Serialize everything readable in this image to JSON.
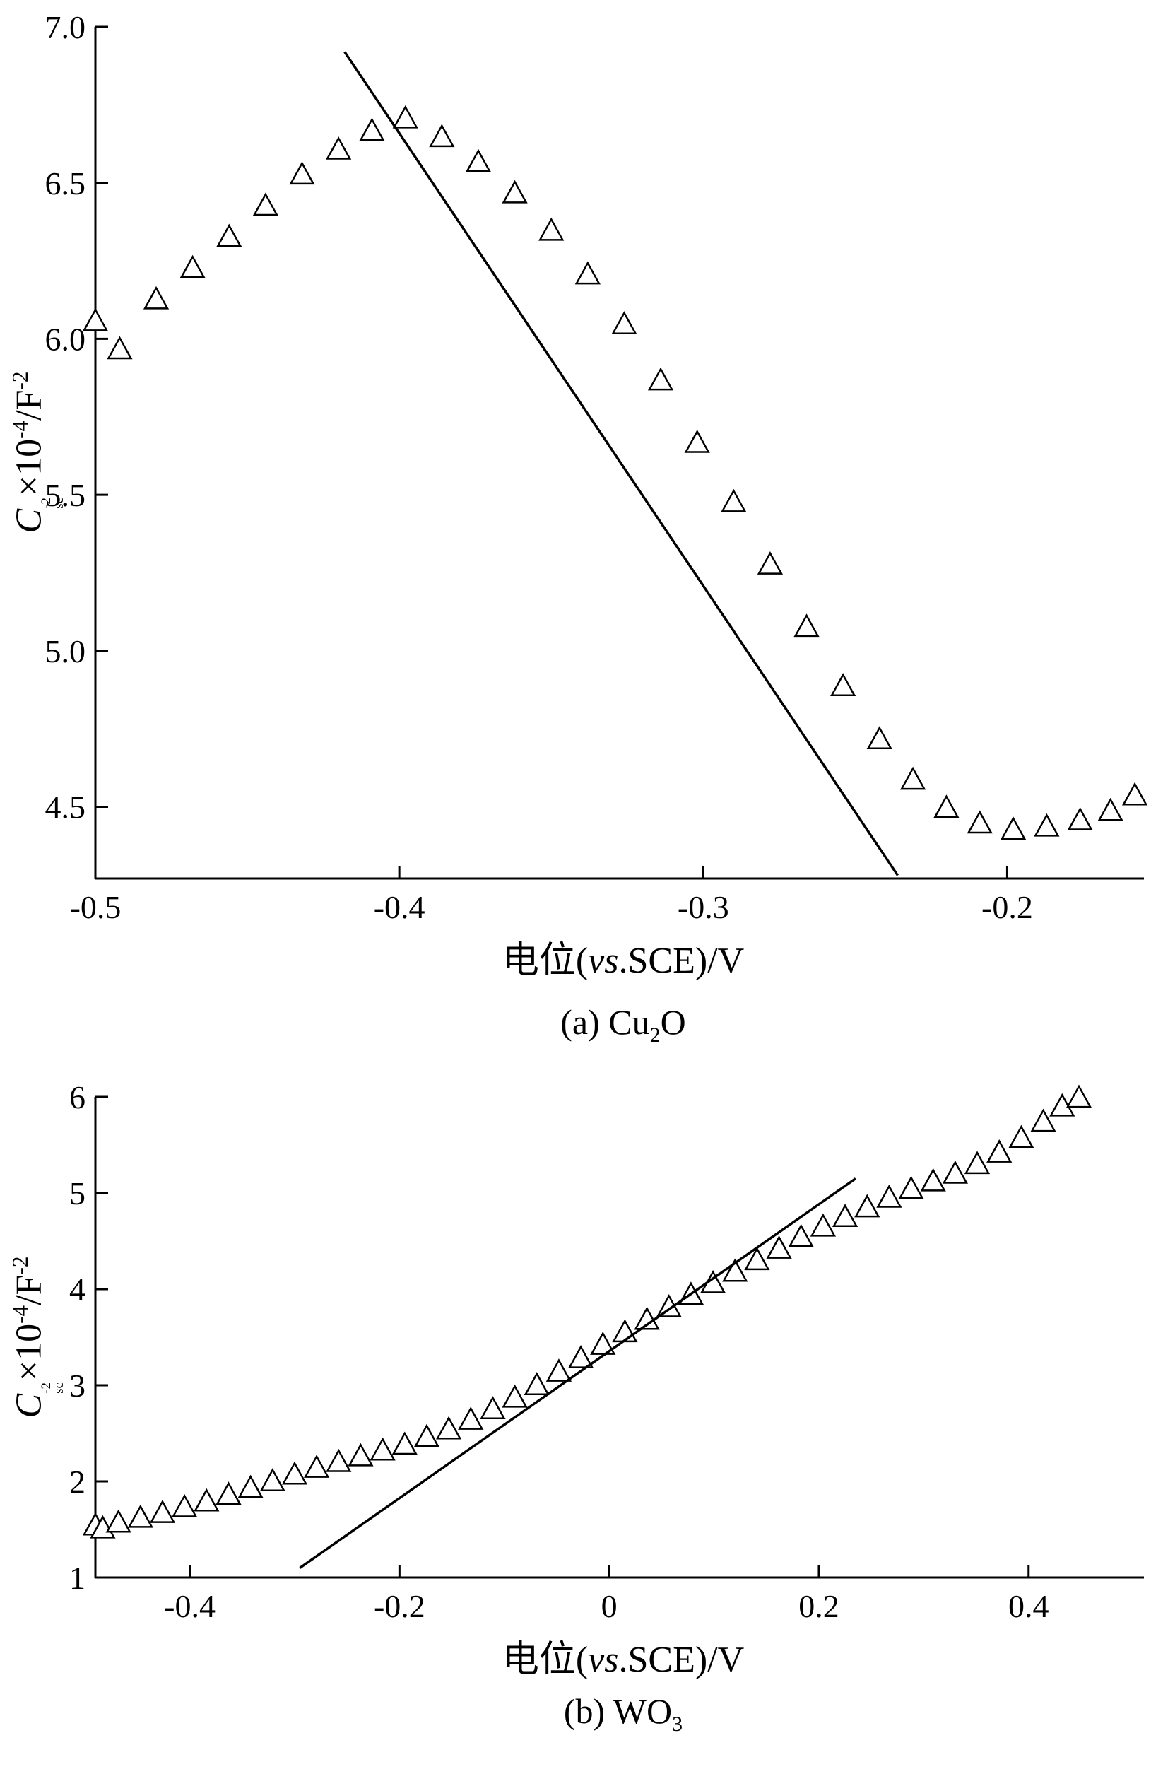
{
  "page": {
    "background": "#ffffff",
    "text_color": "#000000",
    "accent": "#000000"
  },
  "figures": [
    {
      "caption": {
        "prefix": "(a) Cu",
        "sub": "2",
        "suffix": "O"
      },
      "xlabel": {
        "prefix": "电位(",
        "italic": "vs",
        "suffix": ".SCE)/V"
      },
      "ylabel": {
        "sym": "C",
        "sup1": "-2",
        "sub1": "sc",
        "mid": "×10",
        "sup2": "-4",
        "unit": "/F",
        "sup3": "-2"
      }
    },
    {
      "caption": {
        "prefix": "(b) WO",
        "sub": "3",
        "suffix": ""
      },
      "xlabel": {
        "prefix": "电位(",
        "italic": "vs",
        "suffix": ".SCE)/V"
      },
      "ylabel": {
        "sym": "C",
        "sup1": "-2",
        "sub1": "sc",
        "mid": "×10",
        "sup2": "-4",
        "unit": "/F",
        "sup3": "-2"
      }
    }
  ],
  "chart_data": [
    {
      "type": "scatter",
      "title": "(a) Cu2O",
      "xlabel": "电位(vs.SCE)/V",
      "ylabel": "Csc^-2 × 10^-4 / F^-2",
      "marker": "open-triangle-up",
      "legend": "none",
      "grid": false,
      "xlim": [
        -0.5,
        -0.155
      ],
      "ylim": [
        4.27,
        7.0
      ],
      "xticks": [
        {
          "v": -0.5,
          "label": "-0.5"
        },
        {
          "v": -0.4,
          "label": "-0.4"
        },
        {
          "v": -0.3,
          "label": "-0.3"
        },
        {
          "v": -0.2,
          "label": "-0.2"
        }
      ],
      "yticks": [
        {
          "v": 4.5,
          "label": "4.5"
        },
        {
          "v": 5.0,
          "label": "5.0"
        },
        {
          "v": 5.5,
          "label": "5.5"
        },
        {
          "v": 6.0,
          "label": "6.0"
        },
        {
          "v": 6.5,
          "label": "6.5"
        },
        {
          "v": 7.0,
          "label": "7.0"
        }
      ],
      "points": [
        [
          -0.5,
          6.05
        ],
        [
          -0.492,
          5.96
        ],
        [
          -0.48,
          6.12
        ],
        [
          -0.468,
          6.22
        ],
        [
          -0.456,
          6.32
        ],
        [
          -0.444,
          6.42
        ],
        [
          -0.432,
          6.52
        ],
        [
          -0.42,
          6.6
        ],
        [
          -0.409,
          6.66
        ],
        [
          -0.398,
          6.7
        ],
        [
          -0.386,
          6.64
        ],
        [
          -0.374,
          6.56
        ],
        [
          -0.362,
          6.46
        ],
        [
          -0.35,
          6.34
        ],
        [
          -0.338,
          6.2
        ],
        [
          -0.326,
          6.04
        ],
        [
          -0.314,
          5.86
        ],
        [
          -0.302,
          5.66
        ],
        [
          -0.29,
          5.47
        ],
        [
          -0.278,
          5.27
        ],
        [
          -0.266,
          5.07
        ],
        [
          -0.254,
          4.88
        ],
        [
          -0.242,
          4.71
        ],
        [
          -0.231,
          4.58
        ],
        [
          -0.22,
          4.49
        ],
        [
          -0.209,
          4.44
        ],
        [
          -0.198,
          4.42
        ],
        [
          -0.187,
          4.43
        ],
        [
          -0.176,
          4.45
        ],
        [
          -0.166,
          4.48
        ],
        [
          -0.158,
          4.53
        ]
      ],
      "fit_line": {
        "x1": -0.418,
        "y1": 6.92,
        "x2": -0.236,
        "y2": 4.28,
        "slope_sign": "negative"
      },
      "layout": {
        "margins": {
          "l": 135,
          "r": 10,
          "t": 30,
          "b": 75
        },
        "tick_len": 18,
        "tick_font": 46,
        "marker": {
          "half_width": 16,
          "above": 19,
          "below": 10
        }
      }
    },
    {
      "type": "scatter",
      "title": "(b) WO3",
      "xlabel": "电位(vs.SCE)/V",
      "ylabel": "Csc^-2 × 10^-4 / F^-2",
      "marker": "open-triangle-up",
      "legend": "none",
      "grid": false,
      "xlim": [
        -0.49,
        0.51
      ],
      "ylim": [
        1.0,
        6.0
      ],
      "xticks": [
        {
          "v": -0.4,
          "label": "-0.4"
        },
        {
          "v": -0.2,
          "label": "-0.2"
        },
        {
          "v": 0.0,
          "label": "0"
        },
        {
          "v": 0.2,
          "label": "0.2"
        },
        {
          "v": 0.4,
          "label": "0.4"
        }
      ],
      "yticks": [
        {
          "v": 1,
          "label": "1"
        },
        {
          "v": 2,
          "label": "2"
        },
        {
          "v": 3,
          "label": "3"
        },
        {
          "v": 4,
          "label": "4"
        },
        {
          "v": 5,
          "label": "5"
        },
        {
          "v": 6,
          "label": "6"
        }
      ],
      "points": [
        [
          -0.49,
          1.52
        ],
        [
          -0.483,
          1.49
        ],
        [
          -0.468,
          1.55
        ],
        [
          -0.447,
          1.6
        ],
        [
          -0.426,
          1.65
        ],
        [
          -0.405,
          1.71
        ],
        [
          -0.384,
          1.77
        ],
        [
          -0.363,
          1.84
        ],
        [
          -0.342,
          1.91
        ],
        [
          -0.321,
          1.98
        ],
        [
          -0.3,
          2.05
        ],
        [
          -0.279,
          2.12
        ],
        [
          -0.258,
          2.18
        ],
        [
          -0.237,
          2.24
        ],
        [
          -0.216,
          2.3
        ],
        [
          -0.195,
          2.36
        ],
        [
          -0.174,
          2.44
        ],
        [
          -0.153,
          2.52
        ],
        [
          -0.132,
          2.62
        ],
        [
          -0.111,
          2.73
        ],
        [
          -0.09,
          2.85
        ],
        [
          -0.069,
          2.98
        ],
        [
          -0.048,
          3.12
        ],
        [
          -0.027,
          3.26
        ],
        [
          -0.006,
          3.4
        ],
        [
          0.015,
          3.53
        ],
        [
          0.036,
          3.66
        ],
        [
          0.057,
          3.79
        ],
        [
          0.078,
          3.92
        ],
        [
          0.099,
          4.04
        ],
        [
          0.12,
          4.16
        ],
        [
          0.141,
          4.28
        ],
        [
          0.162,
          4.4
        ],
        [
          0.183,
          4.52
        ],
        [
          0.204,
          4.63
        ],
        [
          0.225,
          4.73
        ],
        [
          0.246,
          4.83
        ],
        [
          0.267,
          4.93
        ],
        [
          0.288,
          5.02
        ],
        [
          0.309,
          5.1
        ],
        [
          0.33,
          5.18
        ],
        [
          0.351,
          5.28
        ],
        [
          0.372,
          5.4
        ],
        [
          0.393,
          5.55
        ],
        [
          0.414,
          5.72
        ],
        [
          0.432,
          5.88
        ],
        [
          0.448,
          5.97
        ]
      ],
      "fit_line": {
        "x1": -0.295,
        "y1": 1.1,
        "x2": 0.235,
        "y2": 5.15,
        "slope_sign": "positive"
      },
      "layout": {
        "margins": {
          "l": 135,
          "r": 10,
          "t": 20,
          "b": 75
        },
        "tick_len": 18,
        "tick_font": 46,
        "marker": {
          "half_width": 16,
          "above": 19,
          "below": 10
        }
      }
    }
  ]
}
